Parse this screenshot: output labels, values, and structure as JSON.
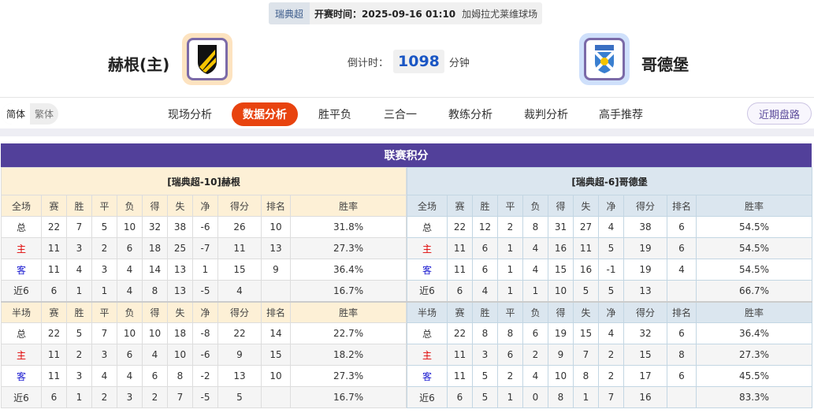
{
  "match": {
    "league": "瑞典超",
    "kickoff": "开赛时间：2025-09-16 01:10",
    "venue": "加姆拉尤莱维球场"
  },
  "home_team": {
    "name": "赫根(主)",
    "logo": "hacken-crest"
  },
  "away_team": {
    "name": "哥德堡",
    "logo": "ifk-goteborg-crest"
  },
  "countdown": {
    "label": "倒计时：",
    "value": "1098",
    "unit": "分钟"
  },
  "lang": {
    "simplified": "简体",
    "traditional": "繁体"
  },
  "nav": {
    "tabs": [
      "现场分析",
      "数据分析",
      "胜平负",
      "三合一",
      "教练分析",
      "裁判分析",
      "高手推荐"
    ],
    "active": 1,
    "recent": "近期盘路"
  },
  "colors": {
    "accent": "#e8430f",
    "header": "#52409a"
  },
  "standings": {
    "title": "联赛积分",
    "home": {
      "caption": "[瑞典超-10]赫根",
      "full_header": [
        "全场",
        "赛",
        "胜",
        "平",
        "负",
        "得",
        "失",
        "净",
        "得分",
        "排名",
        "胜率"
      ],
      "full_rows": [
        [
          "总",
          "22",
          "7",
          "5",
          "10",
          "32",
          "38",
          "-6",
          "26",
          "10",
          "31.8%"
        ],
        [
          "主",
          "11",
          "3",
          "2",
          "6",
          "18",
          "25",
          "-7",
          "11",
          "13",
          "27.3%"
        ],
        [
          "客",
          "11",
          "4",
          "3",
          "4",
          "14",
          "13",
          "1",
          "15",
          "9",
          "36.4%"
        ],
        [
          "近6",
          "6",
          "1",
          "1",
          "4",
          "8",
          "13",
          "-5",
          "4",
          "",
          "16.7%"
        ]
      ],
      "half_header": [
        "半场",
        "赛",
        "胜",
        "平",
        "负",
        "得",
        "失",
        "净",
        "得分",
        "排名",
        "胜率"
      ],
      "half_rows": [
        [
          "总",
          "22",
          "5",
          "7",
          "10",
          "10",
          "18",
          "-8",
          "22",
          "14",
          "22.7%"
        ],
        [
          "主",
          "11",
          "2",
          "3",
          "6",
          "4",
          "10",
          "-6",
          "9",
          "15",
          "18.2%"
        ],
        [
          "客",
          "11",
          "3",
          "4",
          "4",
          "6",
          "8",
          "-2",
          "13",
          "10",
          "27.3%"
        ],
        [
          "近6",
          "6",
          "1",
          "2",
          "3",
          "2",
          "7",
          "-5",
          "5",
          "",
          "16.7%"
        ]
      ]
    },
    "away": {
      "caption": "[瑞典超-6]哥德堡",
      "full_header": [
        "全场",
        "赛",
        "胜",
        "平",
        "负",
        "得",
        "失",
        "净",
        "得分",
        "排名",
        "胜率"
      ],
      "full_rows": [
        [
          "总",
          "22",
          "12",
          "2",
          "8",
          "31",
          "27",
          "4",
          "38",
          "6",
          "54.5%"
        ],
        [
          "主",
          "11",
          "6",
          "1",
          "4",
          "16",
          "11",
          "5",
          "19",
          "6",
          "54.5%"
        ],
        [
          "客",
          "11",
          "6",
          "1",
          "4",
          "15",
          "16",
          "-1",
          "19",
          "4",
          "54.5%"
        ],
        [
          "近6",
          "6",
          "4",
          "1",
          "1",
          "10",
          "5",
          "5",
          "13",
          "",
          "66.7%"
        ]
      ],
      "half_header": [
        "半场",
        "赛",
        "胜",
        "平",
        "负",
        "得",
        "失",
        "净",
        "得分",
        "排名",
        "胜率"
      ],
      "half_rows": [
        [
          "总",
          "22",
          "8",
          "8",
          "6",
          "19",
          "15",
          "4",
          "32",
          "6",
          "36.4%"
        ],
        [
          "主",
          "11",
          "3",
          "6",
          "2",
          "9",
          "7",
          "2",
          "15",
          "8",
          "27.3%"
        ],
        [
          "客",
          "11",
          "5",
          "2",
          "4",
          "10",
          "8",
          "2",
          "17",
          "6",
          "45.5%"
        ],
        [
          "近6",
          "6",
          "5",
          "1",
          "0",
          "8",
          "1",
          "7",
          "16",
          "",
          "83.3%"
        ]
      ]
    }
  }
}
